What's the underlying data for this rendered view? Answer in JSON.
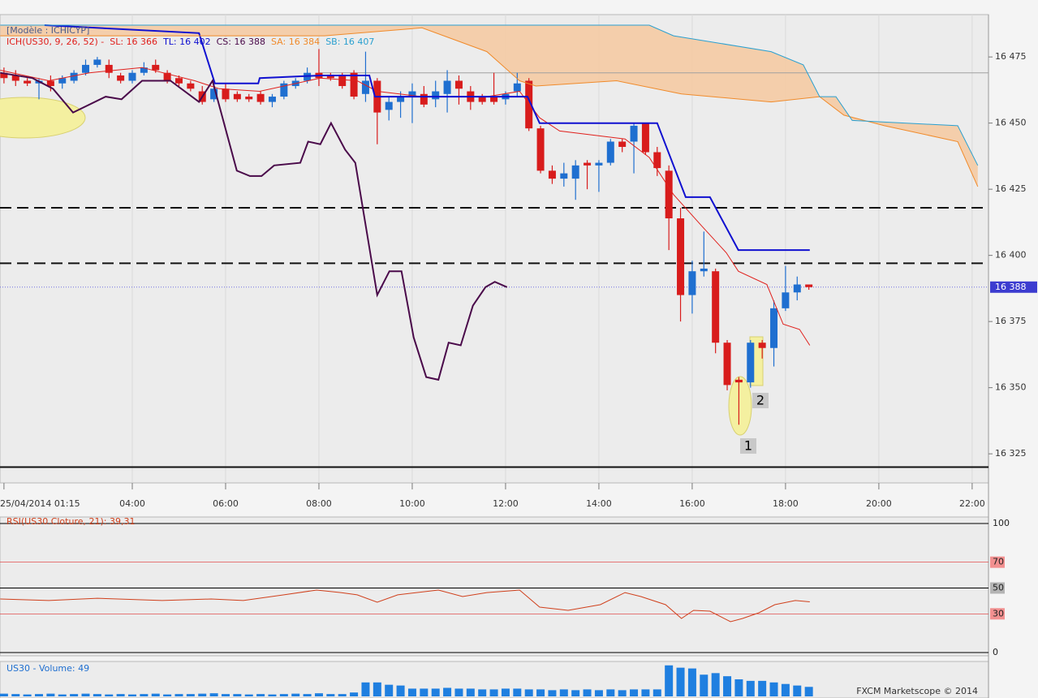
{
  "chart_data": [
    {
      "type": "candlestick",
      "model": "[Modèle : ICHICYP]",
      "indicator": "ICH(US30, 9, 26, 52) -",
      "xlim": [
        1.165,
        22.35
      ],
      "ylim": [
        16314,
        16491
      ],
      "xticks": [
        {
          "value": 1.25,
          "label": "25/04/2014 01:15"
        },
        {
          "value": 4,
          "label": "04:00"
        },
        {
          "value": 6,
          "label": "06:00"
        },
        {
          "value": 8,
          "label": "08:00"
        },
        {
          "value": 10,
          "label": "10:00"
        },
        {
          "value": 12,
          "label": "12:00"
        },
        {
          "value": 14,
          "label": "14:00"
        },
        {
          "value": 16,
          "label": "16:00"
        },
        {
          "value": 18,
          "label": "18:00"
        },
        {
          "value": 20,
          "label": "20:00"
        },
        {
          "value": 22,
          "label": "22:00"
        }
      ],
      "yticks": [
        {
          "value": 16325,
          "label": "16 325"
        },
        {
          "value": 16350,
          "label": "16 350"
        },
        {
          "value": 16375,
          "label": "16 375"
        },
        {
          "value": 16400,
          "label": "16 400"
        },
        {
          "value": 16425,
          "label": "16 425"
        },
        {
          "value": 16450,
          "label": "16 450"
        },
        {
          "value": 16475,
          "label": "16 475"
        }
      ],
      "grid": true,
      "up_color": "#1f6fd0",
      "down_color": "#d81c1c",
      "cloud_color": "#f6c9a0",
      "x": [
        1.25,
        1.5,
        1.75,
        2,
        2.25,
        2.5,
        2.75,
        3,
        3.25,
        3.5,
        3.75,
        4,
        4.25,
        4.5,
        4.75,
        5,
        5.25,
        5.5,
        5.75,
        6,
        6.25,
        6.5,
        6.75,
        7,
        7.25,
        7.5,
        7.75,
        8,
        8.25,
        8.5,
        8.75,
        9,
        9.25,
        9.5,
        9.75,
        10,
        10.25,
        10.5,
        10.75,
        11,
        11.25,
        11.5,
        11.75,
        12,
        12.25,
        12.5,
        12.75,
        13,
        13.25,
        13.5,
        13.75,
        14,
        14.25,
        14.5,
        14.75,
        15,
        15.25,
        15.5,
        15.75,
        16,
        16.25,
        16.5,
        16.75,
        17,
        17.25,
        17.5,
        17.75,
        18,
        18.25,
        18.5
      ],
      "open": [
        16469,
        16468,
        16466,
        16465,
        16466,
        16465,
        16466,
        16469,
        16472,
        16472,
        16468,
        16466,
        16469,
        16472,
        16469,
        16467,
        16465,
        16462,
        16459,
        16463,
        16461,
        16460,
        16461,
        16458,
        16460,
        16464,
        16466,
        16469,
        16468,
        16468,
        16469,
        16461,
        16466,
        16455,
        16458,
        16460,
        16461,
        16459,
        16461,
        16466,
        16462,
        16460,
        16460,
        16459,
        16462,
        16466,
        16448,
        16432,
        16429,
        16429,
        16435,
        16434,
        16435,
        16443,
        16443,
        16450,
        16439,
        16432,
        16414,
        16385,
        16394,
        16394,
        16367,
        16353,
        16352,
        16367,
        16365,
        16380,
        16386,
        16389
      ],
      "high": [
        16471,
        16470,
        16467,
        16467,
        16468,
        16468,
        16470,
        16474,
        16475,
        16474,
        16469,
        16470,
        16473,
        16474,
        16470,
        16468,
        16466,
        16464,
        16465,
        16465,
        16462,
        16461,
        16462,
        16461,
        16466,
        16467,
        16471,
        16478,
        16469,
        16469,
        16470,
        16477,
        16467,
        16460,
        16462,
        16465,
        16464,
        16466,
        16470,
        16468,
        16464,
        16461,
        16469,
        16462,
        16469,
        16467,
        16449,
        16434,
        16435,
        16436,
        16436,
        16436,
        16444,
        16444,
        16450,
        16450,
        16441,
        16434,
        16418,
        16398,
        16409,
        16395,
        16368,
        16354,
        16368,
        16368,
        16383,
        16396,
        16392,
        16389
      ],
      "low": [
        16465,
        16464,
        16464,
        16459,
        16462,
        16463,
        16465,
        16468,
        16471,
        16467,
        16465,
        16465,
        16468,
        16469,
        16465,
        16464,
        16462,
        16457,
        16458,
        16458,
        16458,
        16458,
        16457,
        16456,
        16459,
        16463,
        16465,
        16464,
        16466,
        16463,
        16459,
        16458,
        16442,
        16451,
        16452,
        16450,
        16456,
        16456,
        16454,
        16457,
        16455,
        16457,
        16457,
        16457,
        16460,
        16447,
        16431,
        16427,
        16426,
        16421,
        16425,
        16424,
        16434,
        16439,
        16431,
        16438,
        16430,
        16402,
        16375,
        16378,
        16392,
        16363,
        16349,
        16336,
        16350,
        16361,
        16358,
        16379,
        16383,
        16387
      ],
      "close": [
        16467,
        16466,
        16465,
        16466,
        16464,
        16467,
        16469,
        16472,
        16474,
        16469,
        16466,
        16469,
        16471,
        16470,
        16466,
        16465,
        16463,
        16458,
        16463,
        16459,
        16459,
        16459,
        16458,
        16460,
        16465,
        16466,
        16469,
        16467,
        16467,
        16464,
        16460,
        16466,
        16454,
        16458,
        16460,
        16462,
        16457,
        16462,
        16466,
        16463,
        16458,
        16458,
        16458,
        16461,
        16465,
        16448,
        16432,
        16429,
        16431,
        16434,
        16434,
        16435,
        16443,
        16441,
        16449,
        16439,
        16433,
        16414,
        16385,
        16394,
        16395,
        16367,
        16351,
        16352,
        16367,
        16365,
        16380,
        16386,
        16389,
        16388
      ],
      "series": [
        {
          "name": "SL: 16 366",
          "color": "#e0201c",
          "x": [
            1.17,
            2.21,
            3.08,
            4.21,
            5.34,
            5.86,
            6.73,
            8.03,
            8.82,
            9.25,
            10.21,
            11.6,
            12.3,
            12.73,
            13.16,
            14.56,
            15.08,
            15.6,
            16.21,
            16.73,
            16.99,
            17.6,
            17.95,
            18.3,
            18.52
          ],
          "values": [
            16470,
            16466,
            16469,
            16471,
            16466,
            16463,
            16462,
            16467,
            16466,
            16462,
            16460,
            16460,
            16462,
            16452,
            16447,
            16444,
            16437,
            16423,
            16411,
            16401,
            16394,
            16389,
            16374,
            16372,
            16366
          ]
        },
        {
          "name": "TL: 16 402",
          "color": "#1010d0",
          "x": [
            2.12,
            5.43,
            5.77,
            6.7,
            6.73,
            8.03,
            9.08,
            9.2,
            12.47,
            12.73,
            15.25,
            15.86,
            16.38,
            16.99,
            18.52
          ],
          "values": [
            16487,
            16484,
            16465,
            16465,
            16467,
            16468,
            16468,
            16460,
            16460,
            16450,
            16450,
            16422,
            16422,
            16402,
            16402
          ]
        },
        {
          "name": "CS: 16 388",
          "color": "#4a0a4a",
          "x": [
            1.17,
            1.86,
            2.3,
            2.73,
            3.43,
            3.77,
            4.21,
            4.82,
            5.43,
            5.72,
            6.24,
            6.52,
            6.77,
            7.04,
            7.6,
            7.77,
            8.03,
            8.26,
            8.56,
            8.78,
            9.25,
            9.51,
            9.77,
            10.03,
            10.3,
            10.56,
            10.78,
            11.04,
            11.3,
            11.57,
            11.77,
            12.03
          ],
          "values": [
            16469,
            16467,
            16463,
            16454,
            16460,
            16459,
            16466,
            16466,
            16458,
            16466,
            16432,
            16430,
            16430,
            16434,
            16435,
            16443,
            16442,
            16450,
            16440,
            16435,
            16385,
            16394,
            16394,
            16369,
            16354,
            16353,
            16367,
            16366,
            16381,
            16388,
            16390,
            16388
          ]
        },
        {
          "name": "SA: 16 384",
          "color": "#f08a2a",
          "x": [
            1.17,
            8.12,
            10.21,
            11.6,
            12.3,
            12.65,
            14.38,
            15.77,
            17.69,
            18.73,
            19.25,
            20.12,
            21.69,
            22.12
          ],
          "values": [
            16483,
            16483,
            16486,
            16477,
            16466,
            16464,
            16466,
            16461,
            16458,
            16460,
            16453,
            16449,
            16443,
            16426
          ]
        },
        {
          "name": "SB: 16 407",
          "color": "#2aa0d0",
          "x": [
            1.17,
            15.08,
            15.6,
            17.69,
            18.38,
            18.73,
            19.08,
            19.43,
            21.69,
            22.12
          ],
          "values": [
            16487,
            16487,
            16483,
            16477,
            16472,
            16460,
            16460,
            16451,
            16449,
            16434
          ]
        }
      ],
      "hlines": [
        16418,
        16397
      ],
      "support": 16320,
      "reference": 16469,
      "last_price": {
        "value": 16388,
        "label": "16 388"
      },
      "annotations": [
        "1",
        "2"
      ]
    },
    {
      "type": "line",
      "title": "RSI(US30.Cloture, 21): 39,31",
      "color": "#d0401c",
      "ylim": [
        -2.5,
        105
      ],
      "yticks": [
        0,
        30,
        50,
        70,
        100
      ],
      "tick_colors": [
        "#000000",
        "#e03030",
        "#000000",
        "#e03030",
        "#000000"
      ],
      "tick_box_colors": [
        null,
        "#f29090",
        "#b4b4b4",
        "#f29090",
        null
      ],
      "x": [
        1.17,
        2.21,
        3.25,
        4.64,
        5.69,
        6.38,
        7.25,
        7.95,
        8.47,
        8.82,
        9.25,
        9.69,
        10.56,
        11.08,
        11.6,
        12.3,
        12.73,
        13.34,
        14.03,
        14.56,
        14.9,
        15.43,
        15.77,
        16.03,
        16.38,
        16.82,
        17.08,
        17.43,
        17.77,
        18.21,
        18.52
      ],
      "values": [
        41.5,
        40.3,
        42.1,
        40.3,
        41.5,
        40.3,
        44.7,
        48.4,
        46.5,
        44.7,
        39,
        44.7,
        48.4,
        43.4,
        46.5,
        48.4,
        35.2,
        32.7,
        37.1,
        46.5,
        43.4,
        37.1,
        26.4,
        32.7,
        32.1,
        23.9,
        26.4,
        30.8,
        37.1,
        40.3,
        39.3
      ]
    },
    {
      "type": "bar",
      "title": "US30 - Volume: 49",
      "color": "#1f7fe0",
      "ylim": [
        0,
        180
      ],
      "values": [
        14,
        12,
        10,
        12,
        14,
        10,
        12,
        14,
        12,
        10,
        12,
        10,
        12,
        14,
        10,
        12,
        12,
        14,
        16,
        12,
        12,
        10,
        12,
        10,
        12,
        14,
        12,
        16,
        12,
        12,
        20,
        72,
        72,
        60,
        56,
        40,
        40,
        40,
        44,
        40,
        40,
        36,
        36,
        40,
        40,
        36,
        36,
        32,
        36,
        32,
        36,
        32,
        36,
        32,
        36,
        36,
        36,
        160,
        148,
        144,
        112,
        120,
        104,
        88,
        80,
        80,
        72,
        64,
        56,
        49
      ]
    }
  ],
  "footer": "FXCM Marketscope © 2014"
}
